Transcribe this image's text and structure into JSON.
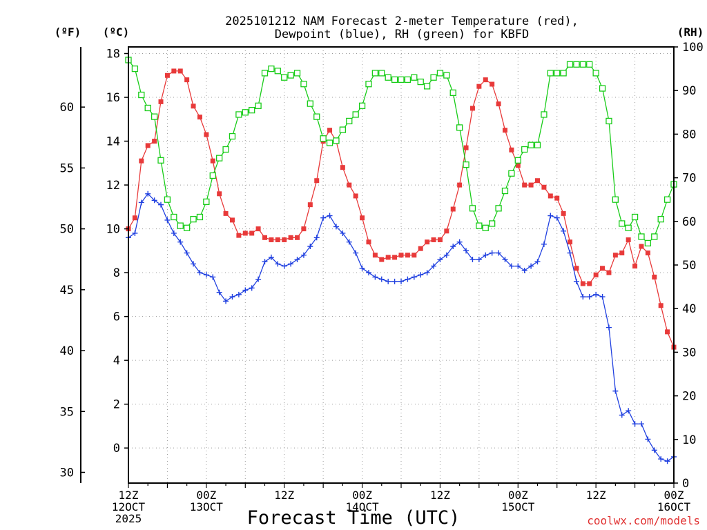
{
  "chart_data": {
    "type": "line",
    "title_line1": "2025101212 NAM Forecast 2-meter Temperature (red),",
    "title_line2": "Dewpoint (blue), RH (green) for KBFD",
    "xlabel": "Forecast Time (UTC)",
    "credit": "coolwx.com/models",
    "left_outer_unit": "(ºF)",
    "left_unit": "(ºC)",
    "right_unit": "(RH)",
    "celsius_axis": {
      "min": -1.6,
      "max": 18.3,
      "ticks": [
        0,
        2,
        4,
        6,
        8,
        10,
        12,
        14,
        16,
        18
      ]
    },
    "fahrenheit_ticks": [
      30,
      35,
      40,
      45,
      50,
      55,
      60
    ],
    "rh_axis": {
      "min": 0,
      "max": 100,
      "ticks": [
        0,
        10,
        20,
        30,
        40,
        50,
        60,
        70,
        80,
        90,
        100
      ]
    },
    "x_range_hours": [
      0,
      84
    ],
    "x_ticks": [
      {
        "hour": 0,
        "lines": [
          "12Z",
          "12OCT",
          "2025"
        ]
      },
      {
        "hour": 12,
        "lines": [
          "00Z",
          "13OCT"
        ]
      },
      {
        "hour": 24,
        "lines": [
          "12Z"
        ]
      },
      {
        "hour": 36,
        "lines": [
          "00Z",
          "14OCT"
        ]
      },
      {
        "hour": 48,
        "lines": [
          "12Z"
        ]
      },
      {
        "hour": 60,
        "lines": [
          "00Z",
          "15OCT"
        ]
      },
      {
        "hour": 72,
        "lines": [
          "12Z"
        ]
      },
      {
        "hour": 84,
        "lines": [
          "00Z",
          "16OCT"
        ]
      }
    ],
    "hours": [
      0,
      1,
      2,
      3,
      4,
      5,
      6,
      7,
      8,
      9,
      10,
      11,
      12,
      13,
      14,
      15,
      16,
      17,
      18,
      19,
      20,
      21,
      22,
      23,
      24,
      25,
      26,
      27,
      28,
      29,
      30,
      31,
      32,
      33,
      34,
      35,
      36,
      37,
      38,
      39,
      40,
      41,
      42,
      43,
      44,
      45,
      46,
      47,
      48,
      49,
      50,
      51,
      52,
      53,
      54,
      55,
      56,
      57,
      58,
      59,
      60,
      61,
      62,
      63,
      64,
      65,
      66,
      67,
      68,
      69,
      70,
      71,
      72,
      73,
      74,
      75,
      76,
      77,
      78,
      79,
      80,
      81,
      82,
      83,
      84
    ],
    "series": [
      {
        "name": "Temperature",
        "unit": "C",
        "color": "#e83a3a",
        "marker": "filled-square",
        "values": [
          10.0,
          10.5,
          13.1,
          13.8,
          14.0,
          15.8,
          17.0,
          17.2,
          17.2,
          16.8,
          15.6,
          15.1,
          14.3,
          13.1,
          11.6,
          10.7,
          10.4,
          9.7,
          9.8,
          9.8,
          10.0,
          9.6,
          9.5,
          9.5,
          9.5,
          9.6,
          9.6,
          10.0,
          11.1,
          12.2,
          14.0,
          14.5,
          14.0,
          12.8,
          12.0,
          11.5,
          10.5,
          9.4,
          8.8,
          8.6,
          8.7,
          8.7,
          8.8,
          8.8,
          8.8,
          9.1,
          9.4,
          9.5,
          9.5,
          9.9,
          10.9,
          12.0,
          13.7,
          15.5,
          16.5,
          16.8,
          16.6,
          15.7,
          14.5,
          13.6,
          12.9,
          12.0,
          12.0,
          12.2,
          11.9,
          11.5,
          11.4,
          10.7,
          9.4,
          8.2,
          7.5,
          7.5,
          7.9,
          8.2,
          8.0,
          8.8,
          8.9,
          9.5,
          8.3,
          9.2,
          8.9,
          7.8,
          6.5,
          5.3,
          4.6
        ]
      },
      {
        "name": "Dewpoint",
        "unit": "C",
        "color": "#2040e0",
        "marker": "plus",
        "values": [
          9.6,
          9.8,
          11.2,
          11.6,
          11.3,
          11.1,
          10.4,
          9.8,
          9.4,
          8.9,
          8.4,
          8.0,
          7.9,
          7.8,
          7.1,
          6.7,
          6.9,
          7.0,
          7.2,
          7.3,
          7.7,
          8.5,
          8.7,
          8.4,
          8.3,
          8.4,
          8.6,
          8.8,
          9.2,
          9.6,
          10.5,
          10.6,
          10.1,
          9.8,
          9.4,
          8.9,
          8.2,
          8.0,
          7.8,
          7.7,
          7.6,
          7.6,
          7.6,
          7.7,
          7.8,
          7.9,
          8.0,
          8.3,
          8.6,
          8.8,
          9.2,
          9.4,
          9.0,
          8.6,
          8.6,
          8.8,
          8.9,
          8.9,
          8.6,
          8.3,
          8.3,
          8.1,
          8.3,
          8.5,
          9.3,
          10.6,
          10.5,
          9.9,
          8.9,
          7.6,
          6.9,
          6.9,
          7.0,
          6.9,
          5.5,
          2.6,
          1.5,
          1.7,
          1.1,
          1.1,
          0.4,
          -0.1,
          -0.5,
          -0.6,
          -0.4
        ]
      },
      {
        "name": "RH",
        "unit": "%",
        "color": "#18cc18",
        "marker": "open-square",
        "values": [
          97.0,
          95.0,
          89.0,
          86.0,
          84.0,
          74.0,
          65.0,
          61.0,
          59.0,
          58.5,
          60.5,
          61.0,
          64.5,
          70.5,
          74.5,
          76.5,
          79.5,
          84.5,
          85.0,
          85.5,
          86.5,
          94.0,
          95.0,
          94.5,
          93.0,
          93.5,
          94.0,
          91.5,
          87.0,
          84.0,
          79.0,
          78.0,
          78.5,
          81.0,
          83.0,
          84.5,
          86.5,
          91.5,
          94.0,
          94.0,
          93.0,
          92.5,
          92.5,
          92.5,
          93.0,
          92.0,
          91.0,
          93.0,
          94.0,
          93.5,
          89.5,
          81.5,
          73.0,
          63.0,
          59.0,
          58.5,
          59.5,
          63.0,
          67.0,
          71.0,
          74.0,
          76.5,
          77.5,
          77.5,
          84.5,
          94.0,
          94.0,
          94.0,
          96.0,
          96.0,
          96.0,
          96.0,
          94.0,
          90.5,
          83.0,
          65.0,
          59.5,
          58.5,
          61.0,
          56.5,
          55.0,
          56.5,
          60.5,
          65.0,
          68.5
        ]
      }
    ]
  }
}
